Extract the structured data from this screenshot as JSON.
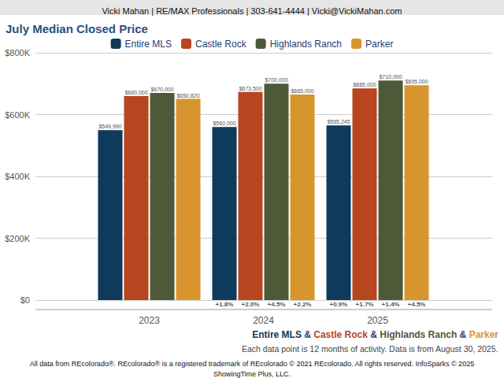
{
  "chart_data": {
    "type": "bar",
    "header": "Vicki Mahan | RE/MAX Professionals | 303-641-4444 | Vicki@VickiMahan.com",
    "title": "July Median Closed Price",
    "categories": [
      "2023",
      "2024",
      "2025"
    ],
    "series": [
      {
        "name": "Entire MLS",
        "color": "#0e3a5b",
        "values": [
          549990,
          560000,
          565245
        ],
        "value_labels": [
          "$549,990",
          "$560,000",
          "$565,245"
        ],
        "change_labels": [
          null,
          "+1.8%",
          "+0.9%"
        ]
      },
      {
        "name": "Castle Rock",
        "color": "#b7451f",
        "values": [
          660000,
          673500,
          685000
        ],
        "value_labels": [
          "$660,000",
          "$673,500",
          "$685,000"
        ],
        "change_labels": [
          null,
          "+2.0%",
          "+1.7%"
        ]
      },
      {
        "name": "Highlands Ranch",
        "color": "#4e5a37",
        "values": [
          670000,
          700000,
          710000
        ],
        "value_labels": [
          "$670,000",
          "$700,000",
          "$710,000"
        ],
        "change_labels": [
          null,
          "+4.5%",
          "+1.4%"
        ]
      },
      {
        "name": "Parker",
        "color": "#d8952e",
        "values": [
          650820,
          665000,
          695000
        ],
        "value_labels": [
          "$650,820",
          "$665,000",
          "$695,000"
        ],
        "change_labels": [
          null,
          "+2.2%",
          "+4.5%"
        ]
      }
    ],
    "ylim": [
      0,
      800000
    ],
    "yticks": [
      {
        "value": 0,
        "label": "$0"
      },
      {
        "value": 200000,
        "label": "$200K"
      },
      {
        "value": 400000,
        "label": "$400K"
      },
      {
        "value": 600000,
        "label": "$600K"
      },
      {
        "value": 800000,
        "label": "$800K"
      }
    ],
    "grid": true,
    "legend": "top",
    "data_labels": true,
    "caption_joiner": " & ",
    "note": "Each data point is 12 months of activity. Data is from August 30, 2025.",
    "footer": [
      "All data from REcolorado®. REcolorado® is a registered trademark of REcolorado © 2021 REcolorado. All rights reserved. InfoSparks © 2025",
      "ShowingTime Plus, LLC."
    ]
  }
}
